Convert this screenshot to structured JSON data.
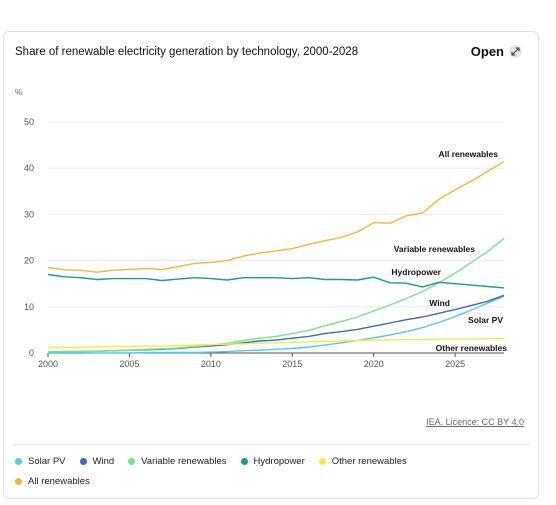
{
  "header": {
    "title": "Share of renewable electricity generation by technology, 2000-2028",
    "open_label": "Open"
  },
  "footer": {
    "licence": "IEA. Licence: CC BY 4.0"
  },
  "icons": {
    "open": "expand-icon"
  },
  "chart_data": {
    "type": "line",
    "title": "Share of renewable electricity generation by technology, 2000-2028",
    "ylabel": "%",
    "xlabel": "",
    "xlim": [
      2000,
      2028
    ],
    "ylim": [
      0,
      50
    ],
    "x_ticks": [
      2000,
      2005,
      2010,
      2015,
      2020,
      2025
    ],
    "y_ticks": [
      0,
      10,
      20,
      30,
      40,
      50
    ],
    "grid": true,
    "legend_placement": "bottom",
    "x": [
      2000,
      2001,
      2002,
      2003,
      2004,
      2005,
      2006,
      2007,
      2008,
      2009,
      2010,
      2011,
      2012,
      2013,
      2014,
      2015,
      2016,
      2017,
      2018,
      2019,
      2020,
      2021,
      2022,
      2023,
      2024,
      2025,
      2026,
      2027,
      2028
    ],
    "series": [
      {
        "name": "Solar PV",
        "color": "#5bc4e8",
        "label": "Solar PV",
        "values": [
          0,
          0,
          0,
          0,
          0,
          0,
          0.1,
          0.1,
          0.1,
          0.1,
          0.2,
          0.3,
          0.5,
          0.6,
          0.8,
          1.0,
          1.3,
          1.7,
          2.2,
          2.7,
          3.3,
          3.9,
          4.6,
          5.5,
          6.6,
          7.9,
          9.3,
          10.8,
          12.3
        ]
      },
      {
        "name": "Wind",
        "color": "#3f6bb6",
        "label": "Wind",
        "values": [
          0.2,
          0.3,
          0.3,
          0.4,
          0.5,
          0.6,
          0.7,
          0.8,
          1.0,
          1.3,
          1.5,
          1.8,
          2.2,
          2.6,
          2.8,
          3.2,
          3.6,
          4.2,
          4.6,
          5.1,
          5.8,
          6.5,
          7.2,
          7.8,
          8.6,
          9.4,
          10.3,
          11.2,
          12.5
        ]
      },
      {
        "name": "Variable renewables",
        "color": "#7ee08b",
        "label": "Variable renewables",
        "values": [
          0.2,
          0.3,
          0.3,
          0.4,
          0.5,
          0.6,
          0.8,
          0.9,
          1.1,
          1.4,
          1.7,
          2.1,
          2.7,
          3.2,
          3.6,
          4.2,
          4.9,
          5.9,
          6.8,
          7.8,
          9.1,
          10.4,
          11.8,
          13.3,
          15.2,
          17.3,
          19.6,
          22.0,
          24.8
        ]
      },
      {
        "name": "Hydropower",
        "color": "#1a9e8c",
        "label": "Hydropower",
        "values": [
          17.0,
          16.5,
          16.3,
          15.9,
          16.1,
          16.1,
          16.1,
          15.7,
          16.0,
          16.3,
          16.1,
          15.8,
          16.3,
          16.3,
          16.3,
          16.1,
          16.3,
          15.9,
          15.9,
          15.8,
          16.4,
          15.2,
          15.1,
          14.3,
          15.3,
          15.0,
          14.7,
          14.4,
          14.1
        ]
      },
      {
        "name": "Other renewables",
        "color": "#f3ea52",
        "label": "Other renewables",
        "values": [
          1.2,
          1.2,
          1.3,
          1.3,
          1.4,
          1.4,
          1.5,
          1.5,
          1.6,
          1.7,
          1.8,
          1.9,
          2.0,
          2.1,
          2.2,
          2.3,
          2.4,
          2.5,
          2.6,
          2.7,
          2.8,
          2.8,
          2.9,
          2.9,
          3.0,
          3.0,
          3.0,
          3.1,
          3.1
        ]
      },
      {
        "name": "All renewables",
        "color": "#f0b44c",
        "label": "All renewables",
        "values": [
          18.5,
          18.0,
          17.9,
          17.5,
          17.9,
          18.1,
          18.3,
          18.1,
          18.7,
          19.4,
          19.6,
          20.0,
          21.0,
          21.6,
          22.1,
          22.6,
          23.5,
          24.3,
          25.0,
          26.2,
          28.2,
          28.1,
          29.7,
          30.3,
          33.3,
          35.3,
          37.2,
          39.3,
          41.4
        ]
      }
    ]
  }
}
